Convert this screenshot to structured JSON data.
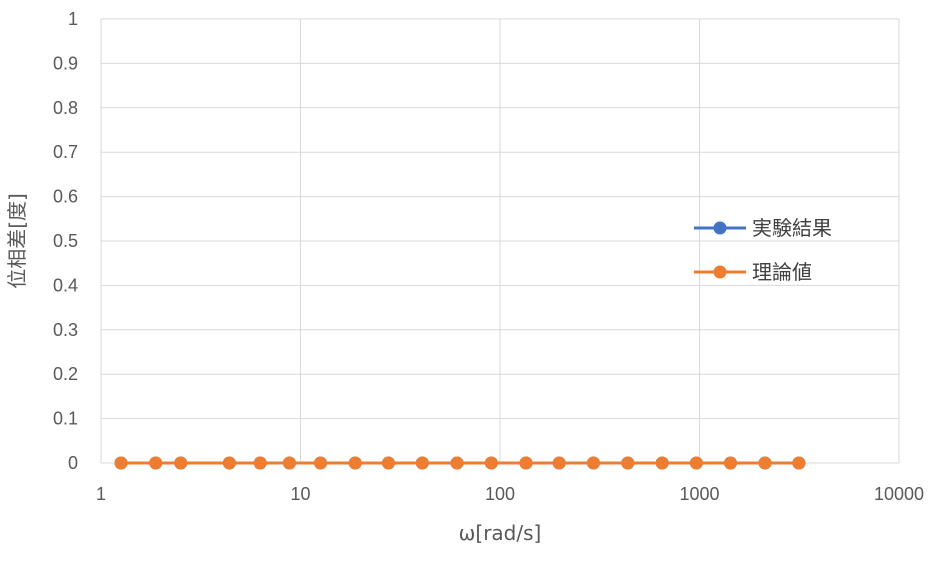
{
  "chart_data": {
    "type": "line",
    "title": "",
    "xlabel": "ω[rad/s]",
    "ylabel": "位相差[度]",
    "x_scale": "log",
    "xlim": [
      1,
      10000
    ],
    "ylim": [
      0,
      1
    ],
    "x_ticks": [
      "1",
      "10",
      "100",
      "1000",
      "10000"
    ],
    "y_ticks": [
      "0",
      "0.1",
      "0.2",
      "0.3",
      "0.4",
      "0.5",
      "0.6",
      "0.7",
      "0.8",
      "0.9",
      "1"
    ],
    "grid": true,
    "legend_position": "right",
    "x": [
      1.26,
      1.88,
      2.51,
      4.4,
      6.28,
      8.8,
      12.6,
      18.8,
      27.6,
      40.8,
      60.9,
      90.5,
      135,
      198,
      294,
      437,
      650,
      965,
      1430,
      2130,
      3150
    ],
    "series": [
      {
        "name": "実験結果",
        "color": "#4472C4",
        "values": [
          0,
          0,
          0,
          0,
          0,
          0,
          0,
          0,
          0,
          0,
          0,
          0,
          0,
          0,
          0,
          0,
          0,
          0,
          0,
          0,
          0
        ]
      },
      {
        "name": "理論値",
        "color": "#ED7D31",
        "values": [
          0,
          0,
          0,
          0,
          0,
          0,
          0,
          0,
          0,
          0,
          0,
          0,
          0,
          0,
          0,
          0,
          0,
          0,
          0,
          0,
          0
        ]
      }
    ]
  }
}
